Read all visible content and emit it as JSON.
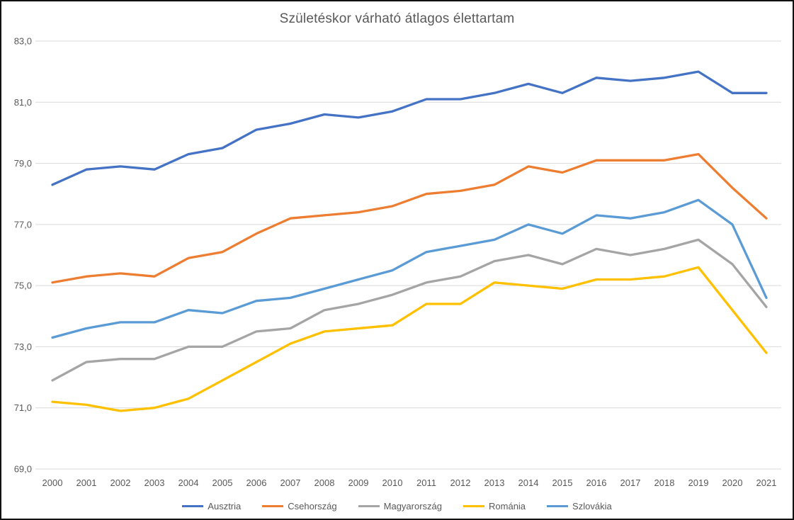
{
  "frame": {
    "background_color": "#FFFFFF",
    "border_color": "#111111"
  },
  "chart_data": {
    "type": "line",
    "title": "Születéskor várható átlagos élettartam",
    "x_categories": [
      "2000",
      "2001",
      "2002",
      "2003",
      "2004",
      "2005",
      "2006",
      "2007",
      "2008",
      "2009",
      "2010",
      "2011",
      "2012",
      "2013",
      "2014",
      "2015",
      "2016",
      "2017",
      "2018",
      "2019",
      "2020",
      "2021"
    ],
    "series": [
      {
        "name": "Ausztria",
        "color": "#4472C4",
        "values": [
          78.3,
          78.8,
          78.9,
          78.8,
          79.3,
          79.5,
          80.1,
          80.3,
          80.6,
          80.5,
          80.7,
          81.1,
          81.1,
          81.3,
          81.6,
          81.3,
          81.8,
          81.7,
          81.8,
          82.0,
          81.3,
          81.3
        ]
      },
      {
        "name": "Csehország",
        "color": "#ED7D31",
        "values": [
          75.1,
          75.3,
          75.4,
          75.3,
          75.9,
          76.1,
          76.7,
          77.2,
          77.3,
          77.4,
          77.6,
          78.0,
          78.1,
          78.3,
          78.9,
          78.7,
          79.1,
          79.1,
          79.1,
          79.3,
          78.2,
          77.2
        ]
      },
      {
        "name": "Magyarország",
        "color": "#A5A5A5",
        "values": [
          71.9,
          72.5,
          72.6,
          72.6,
          73.0,
          73.0,
          73.5,
          73.6,
          74.2,
          74.4,
          74.7,
          75.1,
          75.3,
          75.8,
          76.0,
          75.7,
          76.2,
          76.0,
          76.2,
          76.5,
          75.7,
          74.3
        ]
      },
      {
        "name": "Románia",
        "color": "#FFC000",
        "values": [
          71.2,
          71.1,
          70.9,
          71.0,
          71.3,
          71.9,
          72.5,
          73.1,
          73.5,
          73.6,
          73.7,
          74.4,
          74.4,
          75.1,
          75.0,
          74.9,
          75.2,
          75.2,
          75.3,
          75.6,
          74.2,
          72.8
        ]
      },
      {
        "name": "Szlovákia",
        "color": "#5B9BD5",
        "values": [
          73.3,
          73.6,
          73.8,
          73.8,
          74.2,
          74.1,
          74.5,
          74.6,
          74.9,
          75.2,
          75.5,
          76.1,
          76.3,
          76.5,
          77.0,
          76.7,
          77.3,
          77.2,
          77.4,
          77.8,
          77.0,
          74.6
        ]
      }
    ],
    "ylim": [
      69,
      83
    ],
    "ytick_step": 2,
    "ytick_labels": [
      "69,0",
      "71,0",
      "73,0",
      "75,0",
      "77,0",
      "79,0",
      "81,0",
      "83,0"
    ],
    "decimal_style": "comma",
    "grid": true,
    "legend_position": "bottom",
    "axis_text_color": "#595959",
    "gridline_color": "#D9D9D9",
    "line_width": 3.3
  }
}
